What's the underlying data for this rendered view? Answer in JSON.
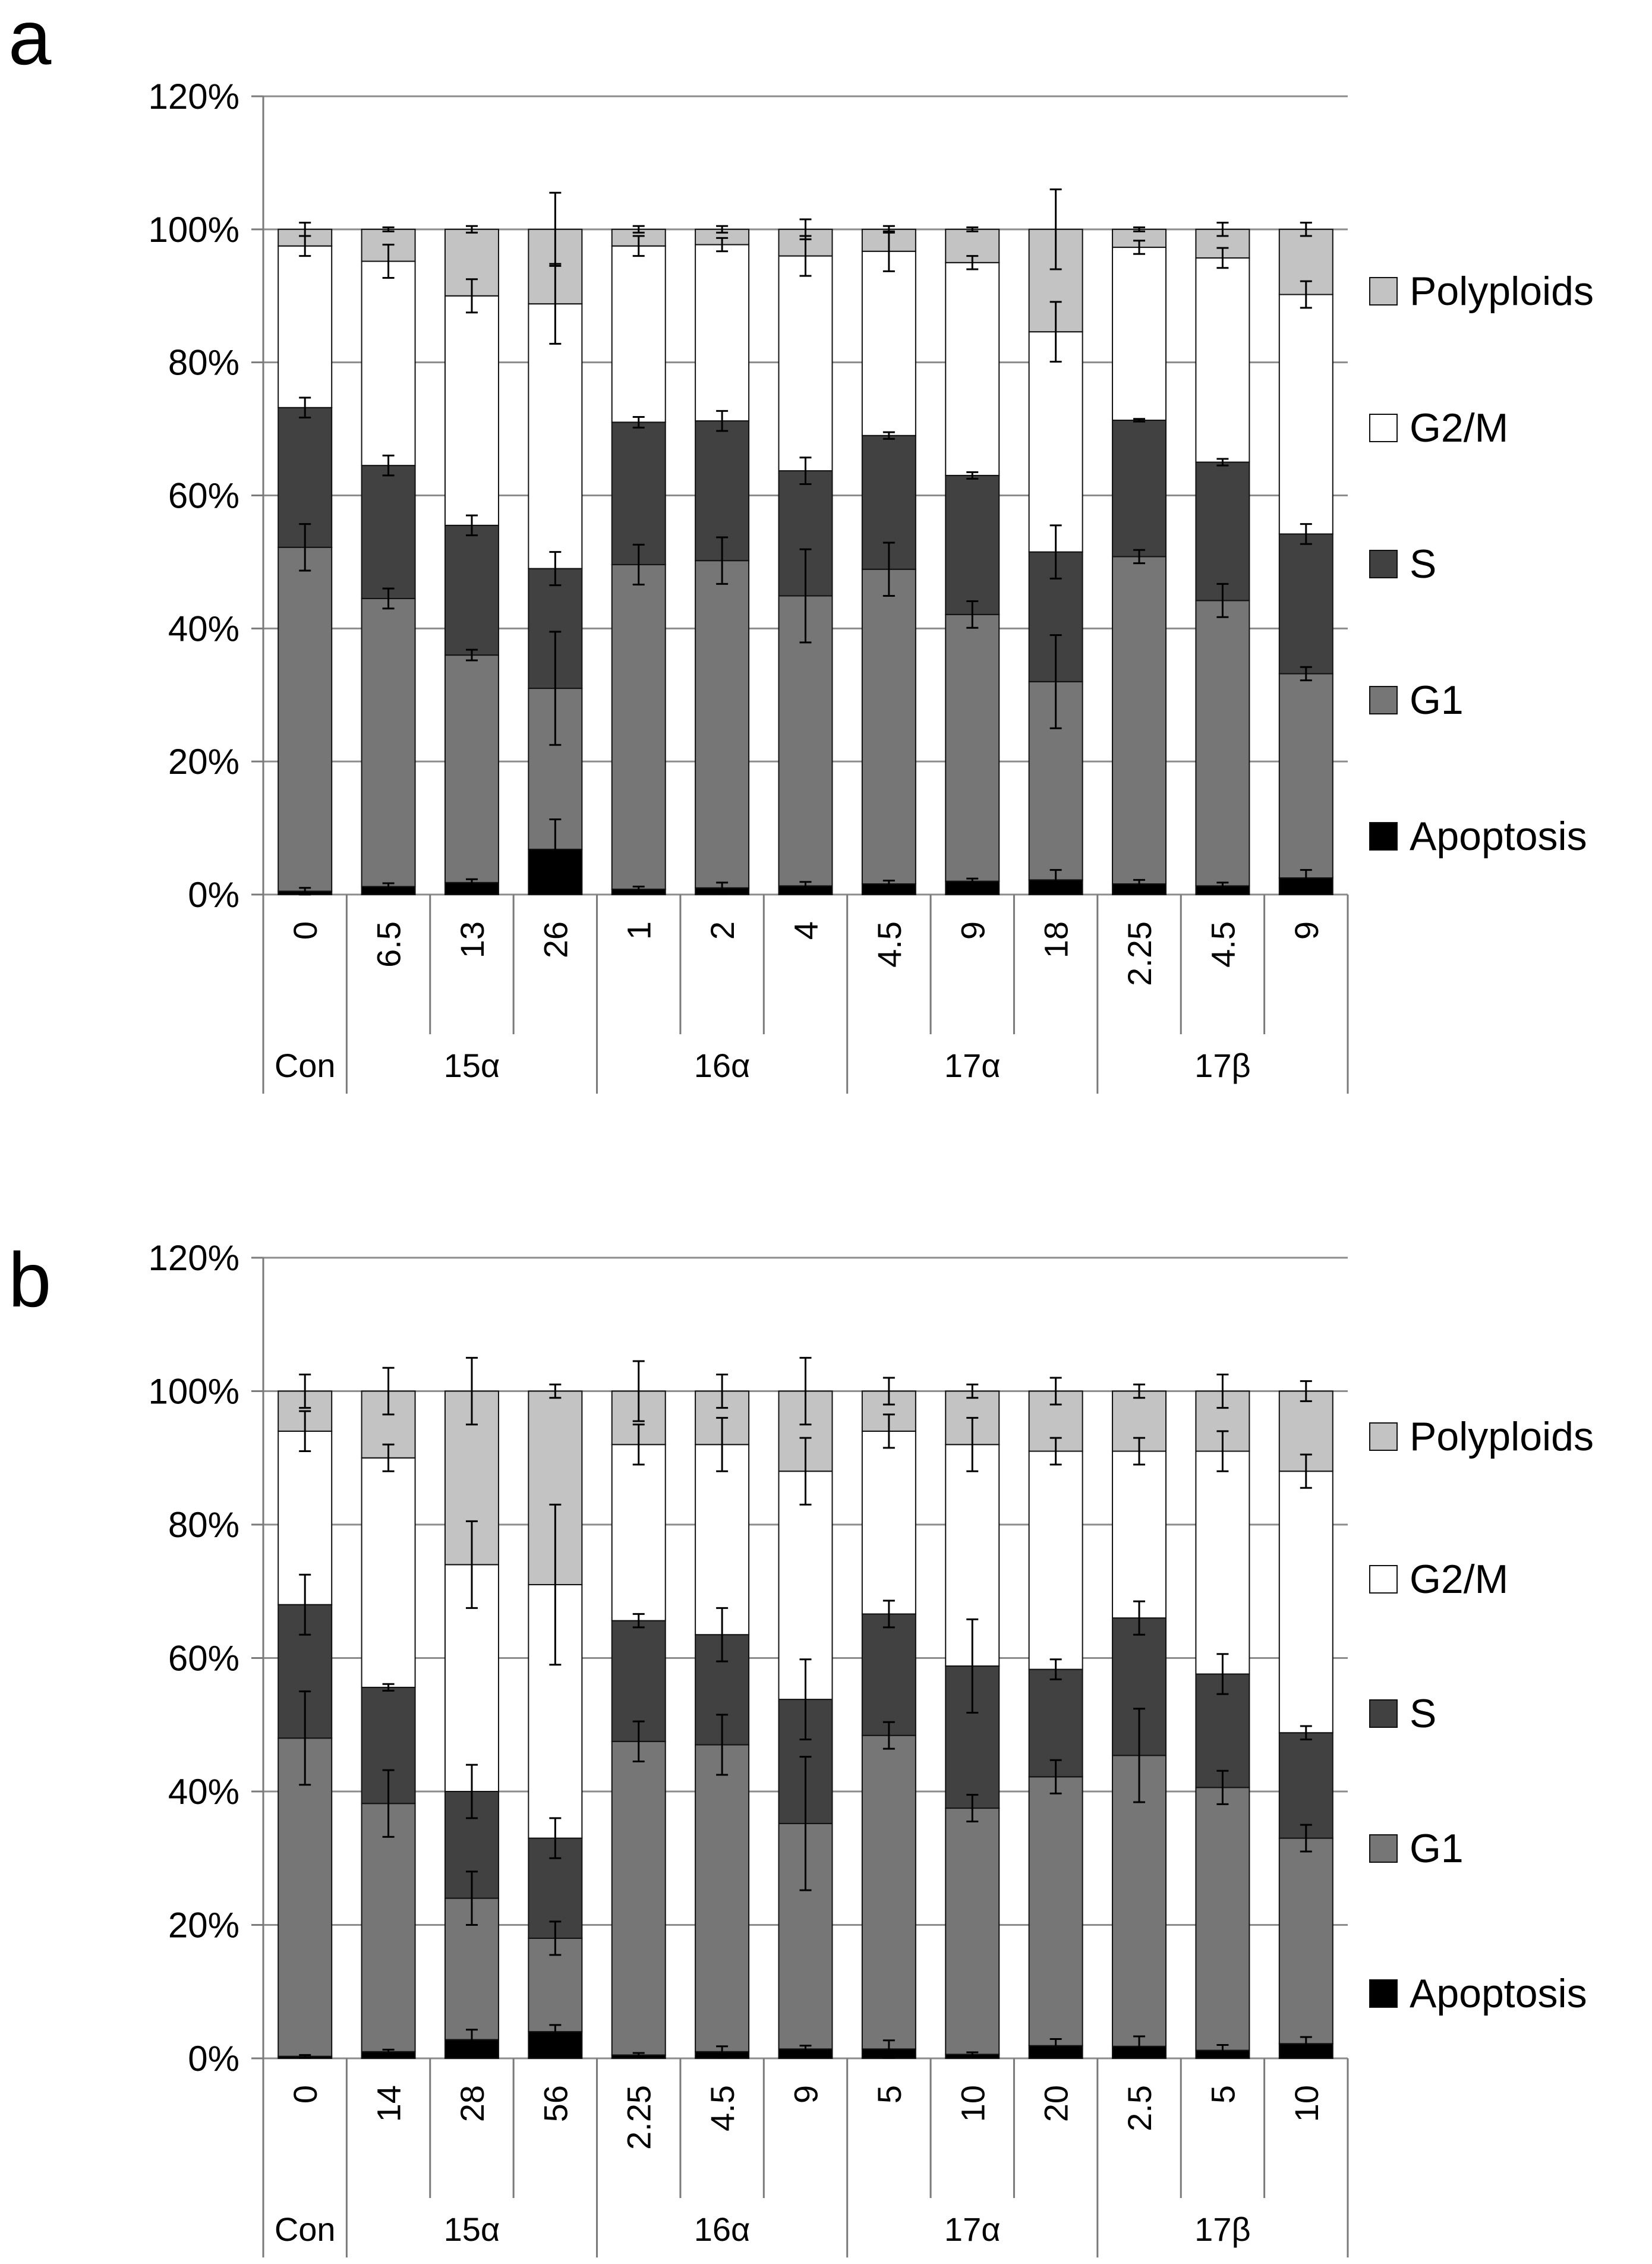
{
  "colors": {
    "Apoptosis": "#000000",
    "G1": "#767676",
    "S": "#414141",
    "G2M": "#ffffff",
    "Polyploids": "#c3c3c3",
    "grid": "#8c8c8c",
    "axis": "#7a7a7a"
  },
  "chart_data": [
    {
      "type": "bar",
      "stacked": true,
      "panel_label": "a",
      "ylim": [
        0,
        120
      ],
      "yticks": [
        0,
        20,
        40,
        60,
        80,
        100,
        120
      ],
      "ytick_labels": [
        "0%",
        "20%",
        "40%",
        "60%",
        "80%",
        "100%",
        "120%"
      ],
      "grid": true,
      "legend_position": "right",
      "categories": [
        "0",
        "6.5",
        "13",
        "26",
        "1",
        "2",
        "4",
        "4.5",
        "9",
        "18",
        "2.25",
        "4.5",
        "9"
      ],
      "groups": [
        {
          "label": "Con",
          "count": 1
        },
        {
          "label": "15α",
          "count": 3
        },
        {
          "label": "16α",
          "count": 3
        },
        {
          "label": "17α",
          "count": 3
        },
        {
          "label": "17β",
          "count": 3
        }
      ],
      "series": [
        {
          "name": "Apoptosis",
          "values": [
            0.5,
            1.2,
            1.8,
            6.8,
            0.8,
            1.0,
            1.3,
            1.6,
            2.0,
            2.2,
            1.6,
            1.3,
            2.5
          ],
          "errors": [
            0.5,
            0.5,
            0.5,
            4.5,
            0.4,
            0.8,
            0.6,
            0.5,
            0.4,
            1.5,
            0.6,
            0.5,
            1.2
          ]
        },
        {
          "name": "G1",
          "values": [
            51.7,
            43.3,
            34.2,
            24.2,
            48.8,
            49.2,
            43.6,
            47.3,
            40.1,
            29.8,
            49.2,
            42.9,
            30.7
          ],
          "errors": [
            3.5,
            1.5,
            0.8,
            8.5,
            3.0,
            3.5,
            7.0,
            4.0,
            2.0,
            7.0,
            1.0,
            2.5,
            1.0
          ]
        },
        {
          "name": "S",
          "values": [
            21.0,
            20.0,
            19.5,
            18.0,
            21.4,
            21.0,
            18.8,
            20.1,
            20.9,
            19.5,
            20.5,
            20.8,
            21.0
          ],
          "errors": [
            1.5,
            1.5,
            1.5,
            2.5,
            0.8,
            1.5,
            2.0,
            0.5,
            0.5,
            4.0,
            0.2,
            0.5,
            1.5
          ]
        },
        {
          "name": "G2/M",
          "values": [
            24.3,
            30.7,
            34.5,
            39.8,
            26.5,
            26.5,
            32.3,
            27.7,
            32.0,
            33.1,
            26.0,
            30.7,
            36.0
          ],
          "errors": [
            1.5,
            2.5,
            2.5,
            6.0,
            1.5,
            1.0,
            3.0,
            3.0,
            1.0,
            4.5,
            1.0,
            1.5,
            2.0
          ]
        },
        {
          "name": "Polyploids",
          "values": [
            2.5,
            4.8,
            10.0,
            11.2,
            2.5,
            2.3,
            4.0,
            3.3,
            5.0,
            15.4,
            2.7,
            4.3,
            9.8
          ],
          "errors": [
            1.0,
            0.3,
            0.5,
            5.5,
            0.5,
            0.5,
            1.5,
            0.5,
            0.3,
            6.0,
            0.3,
            1.0,
            1.0
          ]
        }
      ]
    },
    {
      "type": "bar",
      "stacked": true,
      "panel_label": "b",
      "ylim": [
        0,
        120
      ],
      "yticks": [
        0,
        20,
        40,
        60,
        80,
        100,
        120
      ],
      "ytick_labels": [
        "0%",
        "20%",
        "40%",
        "60%",
        "80%",
        "100%",
        "120%"
      ],
      "grid": true,
      "legend_position": "right",
      "categories": [
        "0",
        "14",
        "28",
        "56",
        "2.25",
        "4.5",
        "9",
        "5",
        "10",
        "20",
        "2.5",
        "5",
        "10"
      ],
      "groups": [
        {
          "label": "Con",
          "count": 1
        },
        {
          "label": "15α",
          "count": 3
        },
        {
          "label": "16α",
          "count": 3
        },
        {
          "label": "17α",
          "count": 3
        },
        {
          "label": "17β",
          "count": 3
        }
      ],
      "series": [
        {
          "name": "Apoptosis",
          "values": [
            0.3,
            1.0,
            2.8,
            4.0,
            0.5,
            1.0,
            1.4,
            1.4,
            0.6,
            1.9,
            1.8,
            1.2,
            2.2
          ],
          "errors": [
            0.2,
            0.3,
            1.5,
            1.0,
            0.3,
            0.8,
            0.5,
            1.3,
            0.3,
            1.0,
            1.5,
            0.8,
            1.0
          ]
        },
        {
          "name": "G1",
          "values": [
            47.7,
            37.2,
            21.2,
            14.0,
            47.0,
            46.0,
            33.8,
            47.0,
            36.9,
            40.3,
            43.6,
            39.4,
            30.8
          ],
          "errors": [
            7.0,
            5.0,
            4.0,
            2.5,
            3.0,
            4.5,
            10.0,
            2.0,
            2.0,
            2.5,
            7.0,
            2.5,
            2.0
          ]
        },
        {
          "name": "S",
          "values": [
            20.0,
            17.4,
            16.0,
            15.0,
            18.1,
            16.5,
            18.6,
            18.2,
            21.3,
            16.1,
            20.6,
            17.0,
            15.8
          ],
          "errors": [
            4.5,
            0.5,
            4.0,
            3.0,
            1.0,
            4.0,
            6.0,
            2.0,
            7.0,
            1.5,
            2.5,
            3.0,
            1.0
          ]
        },
        {
          "name": "G2/M",
          "values": [
            26.0,
            34.4,
            34.0,
            38.0,
            26.4,
            28.5,
            34.2,
            27.4,
            33.2,
            32.7,
            25.0,
            33.4,
            39.2
          ],
          "errors": [
            3.0,
            2.0,
            6.5,
            12.0,
            3.0,
            4.0,
            5.0,
            2.5,
            4.0,
            2.0,
            2.0,
            3.0,
            2.5
          ]
        },
        {
          "name": "Polyploids",
          "values": [
            6.0,
            10.0,
            26.0,
            29.0,
            8.0,
            8.0,
            12.0,
            6.0,
            8.0,
            9.0,
            9.0,
            9.0,
            12.0
          ],
          "errors": [
            2.5,
            3.5,
            5.0,
            1.0,
            4.5,
            2.5,
            5.0,
            2.0,
            1.0,
            2.0,
            1.0,
            2.5,
            1.5
          ]
        }
      ]
    }
  ],
  "legend_order": [
    "Polyploids",
    "G2/M",
    "S",
    "G1",
    "Apoptosis"
  ]
}
